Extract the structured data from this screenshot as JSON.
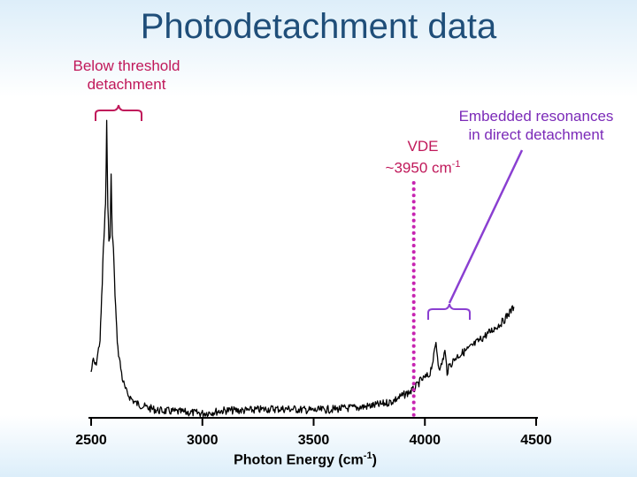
{
  "slide": {
    "title": "Photodetachment data"
  },
  "annotations": {
    "below_threshold_line1": "Below threshold",
    "below_threshold_line2": "detachment",
    "embedded_line1": "Embedded resonances",
    "embedded_line2": "in direct detachment",
    "vde_label": "VDE",
    "vde_value": "~3950 cm",
    "vde_exp": "-1",
    "vde_position": 3950
  },
  "colors": {
    "trace": "#000000",
    "vde_line": "#c724b1",
    "below_brace": "#c0185a",
    "embedded_brace": "#8a3fd1",
    "title": "#1f4e79"
  },
  "chart_data": {
    "type": "line",
    "title": "",
    "xlabel_main": "Photon Energy (cm",
    "xlabel_exp": "-1",
    "xlabel_close": ")",
    "ylabel": "",
    "xlim": [
      2500,
      4500
    ],
    "ylim": [
      0,
      1
    ],
    "grid": false,
    "x_ticks": [
      2500,
      3000,
      3500,
      4000,
      4500
    ],
    "x_tick_labels": [
      "2500",
      "3000",
      "3500",
      "4000",
      "4500"
    ],
    "series": [
      {
        "x": [
          2500,
          2510,
          2520,
          2530,
          2540,
          2545,
          2550,
          2555,
          2560,
          2565,
          2570,
          2575,
          2580,
          2585,
          2590,
          2595,
          2600,
          2605,
          2610,
          2615,
          2620,
          2630,
          2640,
          2650,
          2660,
          2680,
          2700,
          2750,
          2800,
          2900,
          3000,
          3100,
          3200,
          3300,
          3400,
          3500,
          3600,
          3700,
          3800,
          3850,
          3900,
          3950,
          3980,
          4000,
          4020,
          4040,
          4050,
          4060,
          4070,
          4080,
          4090,
          4100,
          4110,
          4120,
          4140,
          4160,
          4200,
          4250,
          4300,
          4350,
          4400
        ],
        "y": [
          0.14,
          0.18,
          0.16,
          0.2,
          0.25,
          0.34,
          0.44,
          0.56,
          0.62,
          0.72,
          0.98,
          0.71,
          0.58,
          0.6,
          0.8,
          0.6,
          0.56,
          0.45,
          0.36,
          0.28,
          0.22,
          0.17,
          0.12,
          0.09,
          0.07,
          0.05,
          0.035,
          0.02,
          0.01,
          0.005,
          0.0,
          0.01,
          0.01,
          0.015,
          0.015,
          0.01,
          0.015,
          0.02,
          0.03,
          0.04,
          0.06,
          0.08,
          0.11,
          0.12,
          0.13,
          0.19,
          0.24,
          0.17,
          0.15,
          0.18,
          0.21,
          0.14,
          0.16,
          0.17,
          0.19,
          0.2,
          0.22,
          0.25,
          0.28,
          0.31,
          0.36
        ]
      }
    ]
  }
}
